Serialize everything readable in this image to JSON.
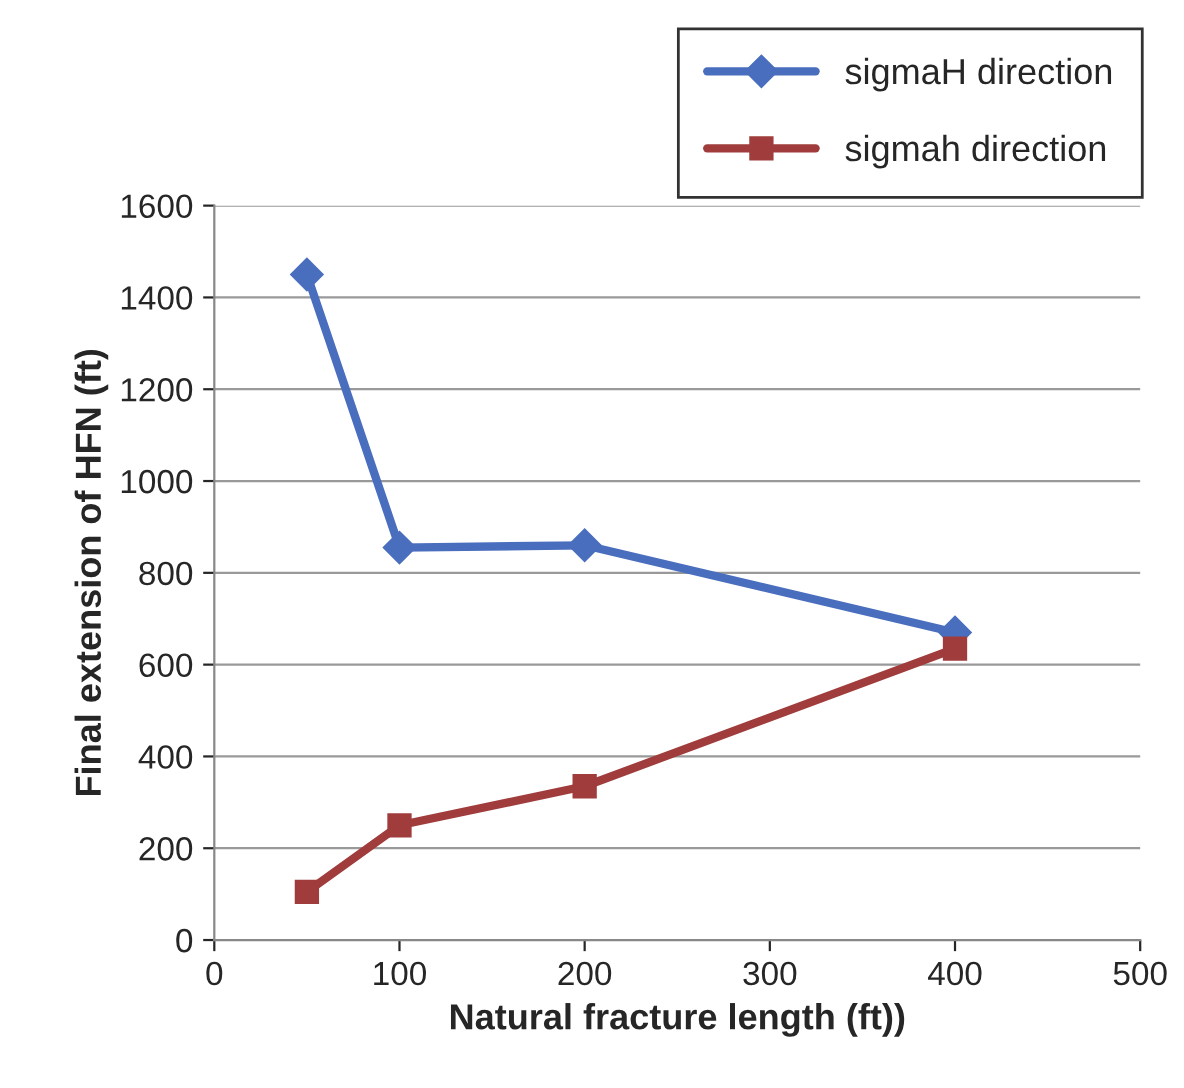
{
  "chart_data": {
    "type": "line",
    "xlabel": "Natural fracture length (ft))",
    "ylabel": "Final extension of HFN (ft)",
    "x": [
      50,
      100,
      200,
      400
    ],
    "series": [
      {
        "name": "sigmaH direction",
        "color": "#4a6ebe",
        "values": [
          1450,
          855,
          860,
          670
        ],
        "marker": "diamond"
      },
      {
        "name": "sigmah direction",
        "color": "#a03c3c",
        "values": [
          105,
          250,
          335,
          635
        ],
        "marker": "square"
      }
    ],
    "xlim": [
      0,
      500
    ],
    "xticks": [
      0,
      100,
      200,
      300,
      400,
      500
    ],
    "ylim": [
      0,
      1600
    ],
    "yticks": [
      0,
      200,
      400,
      600,
      800,
      1000,
      1200,
      1400,
      1600
    ],
    "grid": "y",
    "legend": "top right",
    "line_style": "solid"
  }
}
